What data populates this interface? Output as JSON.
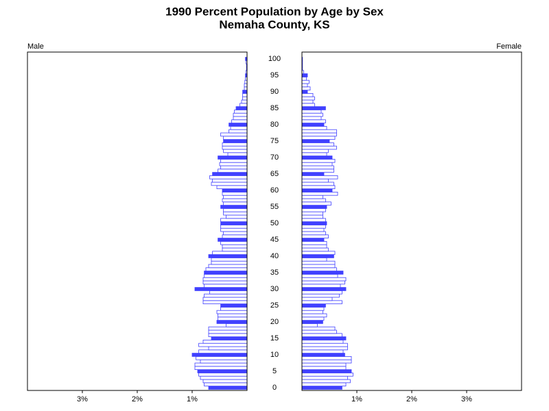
{
  "chart_data": {
    "type": "pyramid",
    "title": "1990 Percent Population by Age by Sex",
    "subtitle": "Nemaha County, KS",
    "categories": [
      0,
      null,
      null,
      null,
      null,
      5,
      null,
      null,
      null,
      null,
      10,
      null,
      null,
      null,
      null,
      15,
      null,
      null,
      null,
      null,
      20,
      null,
      null,
      null,
      null,
      25,
      null,
      null,
      null,
      null,
      30,
      null,
      null,
      null,
      null,
      35,
      null,
      null,
      null,
      null,
      40,
      null,
      null,
      null,
      null,
      45,
      null,
      null,
      null,
      null,
      50,
      null,
      null,
      null,
      null,
      55,
      null,
      null,
      null,
      null,
      60,
      null,
      null,
      null,
      null,
      65,
      null,
      null,
      null,
      null,
      70,
      null,
      null,
      null,
      null,
      75,
      null,
      null,
      null,
      null,
      80,
      null,
      null,
      null,
      null,
      85,
      null,
      null,
      null,
      null,
      90,
      null,
      null,
      null,
      null,
      95,
      null,
      null,
      null,
      null,
      100
    ],
    "series": [
      {
        "name": "Male",
        "color": "#4040ff",
        "values": [
          0.7,
          0.78,
          0.8,
          0.85,
          0.88,
          0.9,
          0.95,
          0.95,
          0.85,
          0.93,
          1.0,
          0.88,
          0.7,
          0.88,
          0.8,
          0.65,
          0.7,
          0.7,
          0.7,
          0.38,
          0.55,
          0.53,
          0.53,
          0.55,
          0.48,
          0.48,
          0.8,
          0.8,
          0.78,
          0.68,
          0.95,
          0.78,
          0.8,
          0.8,
          0.78,
          0.78,
          0.75,
          0.7,
          0.65,
          0.65,
          0.7,
          0.63,
          0.45,
          0.45,
          0.48,
          0.53,
          0.45,
          0.43,
          0.48,
          0.48,
          0.48,
          0.48,
          0.38,
          0.43,
          0.43,
          0.48,
          0.43,
          0.45,
          0.43,
          0.45,
          0.45,
          0.55,
          0.65,
          0.63,
          0.68,
          0.63,
          0.53,
          0.48,
          0.5,
          0.48,
          0.53,
          0.35,
          0.43,
          0.45,
          0.45,
          0.43,
          0.43,
          0.48,
          0.33,
          0.3,
          0.33,
          0.28,
          0.25,
          0.25,
          0.23,
          0.2,
          0.13,
          0.1,
          0.08,
          0.08,
          0.08,
          0.05,
          0.05,
          0.04,
          0.03,
          0.03,
          0.02,
          0.01,
          0.01,
          0.02,
          0.03
        ]
      },
      {
        "name": "Female",
        "color": "#4040ff",
        "values": [
          0.73,
          0.8,
          0.88,
          0.83,
          0.93,
          0.9,
          0.8,
          0.8,
          0.9,
          0.9,
          0.78,
          0.75,
          0.83,
          0.83,
          0.75,
          0.8,
          0.73,
          0.63,
          0.6,
          0.28,
          0.38,
          0.4,
          0.45,
          0.38,
          0.4,
          0.43,
          0.73,
          0.55,
          0.68,
          0.73,
          0.8,
          0.7,
          0.78,
          0.8,
          0.65,
          0.75,
          0.63,
          0.6,
          0.6,
          0.45,
          0.58,
          0.6,
          0.48,
          0.45,
          0.45,
          0.4,
          0.48,
          0.43,
          0.4,
          0.43,
          0.45,
          0.43,
          0.38,
          0.38,
          0.43,
          0.45,
          0.53,
          0.43,
          0.38,
          0.65,
          0.55,
          0.6,
          0.58,
          0.48,
          0.65,
          0.4,
          0.58,
          0.58,
          0.55,
          0.6,
          0.55,
          0.45,
          0.48,
          0.63,
          0.58,
          0.5,
          0.6,
          0.63,
          0.63,
          0.45,
          0.4,
          0.43,
          0.35,
          0.38,
          0.35,
          0.43,
          0.23,
          0.2,
          0.23,
          0.2,
          0.1,
          0.15,
          0.1,
          0.13,
          0.08,
          0.1,
          0.03,
          0.01,
          0.01,
          0.01,
          0.01
        ]
      }
    ],
    "xlim": [
      0,
      4
    ],
    "xticks": [
      {
        "value": 1,
        "label": "1%"
      },
      {
        "value": 2,
        "label": "2%"
      },
      {
        "value": 3,
        "label": "3%"
      }
    ]
  }
}
